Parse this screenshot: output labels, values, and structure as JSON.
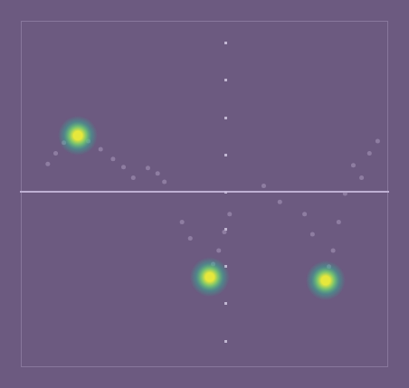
{
  "chart_data": {
    "type": "scatter",
    "tick_labels": false,
    "grid": false,
    "xlim": [
      -5.5,
      4.3
    ],
    "ylim": [
      -4.7,
      4.6
    ],
    "yticks": [
      -4,
      -3,
      -2,
      -1,
      0,
      1,
      2,
      3,
      4
    ],
    "series": [
      {
        "color": "#b9a9c9",
        "marker": "circle",
        "x": [
          -4.78,
          -4.57,
          -4.35,
          -3.7,
          -3.37,
          -3.04,
          -2.76,
          -2.5,
          -2.11,
          -1.85,
          -1.67,
          0.07,
          -0.07,
          -0.22,
          -0.37,
          -1.2,
          -0.98,
          3.37,
          3.15,
          2.98,
          2.83,
          2.72,
          2.07,
          2.28,
          3.8,
          4.02,
          3.59,
          0.98,
          1.41
        ],
        "values": [
          0.76,
          1.04,
          1.33,
          1.37,
          1.15,
          0.89,
          0.67,
          0.39,
          0.65,
          0.5,
          0.28,
          -0.59,
          -1.07,
          -1.57,
          -1.93,
          -0.8,
          -1.24,
          0.72,
          -0.04,
          -0.8,
          -1.57,
          -2.0,
          -0.59,
          -1.13,
          1.04,
          1.37,
          0.39,
          0.17,
          -0.26
        ]
      },
      {
        "color": "#e6e83c",
        "marker": "glow",
        "x": [
          -3.98,
          -0.46,
          2.63
        ],
        "values": [
          1.52,
          -2.28,
          -2.37
        ]
      }
    ]
  }
}
